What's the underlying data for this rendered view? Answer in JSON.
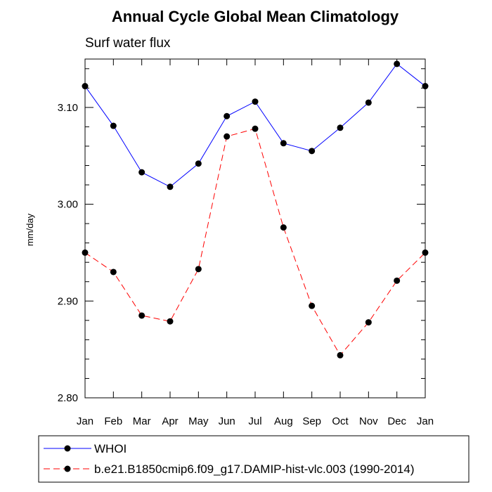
{
  "chart_data": {
    "type": "line",
    "title": "Annual Cycle Global Mean Climatology",
    "subtitle": "Surf water flux",
    "xlabel": "",
    "ylabel": "mm/day",
    "categories": [
      "Jan",
      "Feb",
      "Mar",
      "Apr",
      "May",
      "Jun",
      "Jul",
      "Aug",
      "Sep",
      "Oct",
      "Nov",
      "Dec",
      "Jan"
    ],
    "ylim": [
      2.8,
      3.15
    ],
    "yticks": [
      "2.80",
      "2.90",
      "3.00",
      "3.10"
    ],
    "grid": false,
    "legend_position": "bottom",
    "series": [
      {
        "name": "WHOI",
        "color": "#0000ff",
        "style": "solid",
        "values": [
          3.122,
          3.081,
          3.033,
          3.018,
          3.042,
          3.091,
          3.106,
          3.063,
          3.055,
          3.079,
          3.105,
          3.145,
          3.122
        ]
      },
      {
        "name": "b.e21.B1850cmip6.f09_g17.DAMIP-hist-vlc.003 (1990-2014)",
        "color": "#ff0000",
        "style": "dashed",
        "values": [
          2.95,
          2.93,
          2.885,
          2.879,
          2.933,
          3.07,
          3.078,
          2.976,
          2.895,
          2.844,
          2.878,
          2.921,
          2.95
        ]
      }
    ]
  }
}
